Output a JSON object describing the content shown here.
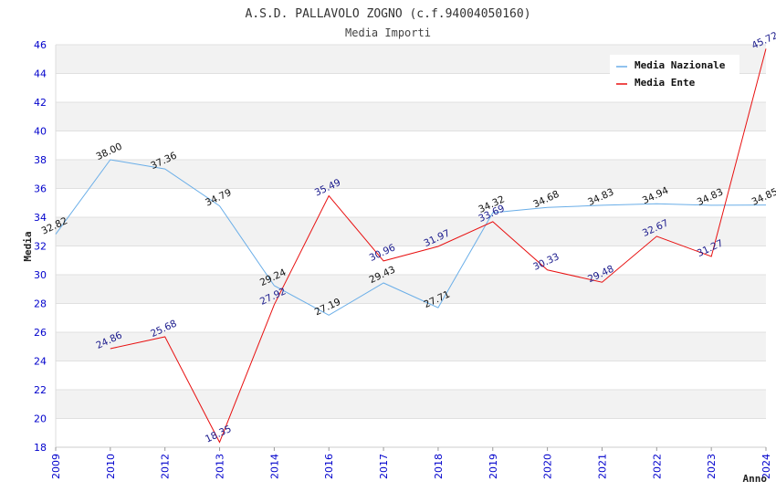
{
  "chart_data": {
    "type": "line",
    "title": "A.S.D. PALLAVOLO ZOGNO (c.f.94004050160)",
    "subtitle": "Media Importi",
    "xlabel": "Anno",
    "ylabel": "Media",
    "ylim": [
      18,
      46
    ],
    "yticks": [
      "18",
      "20",
      "22",
      "24",
      "26",
      "28",
      "30",
      "32",
      "34",
      "36",
      "38",
      "40",
      "42",
      "44",
      "46"
    ],
    "categories": [
      "2009",
      "2010",
      "2012",
      "2013",
      "2014",
      "2016",
      "2017",
      "2018",
      "2019",
      "2020",
      "2021",
      "2022",
      "2023",
      "2024"
    ],
    "grid": true,
    "legend_position": "top-right",
    "series": [
      {
        "name": "Media Nazionale",
        "color": "#6aaee8",
        "values": [
          32.82,
          38.0,
          37.36,
          34.79,
          29.24,
          27.19,
          29.43,
          27.71,
          34.32,
          34.68,
          34.83,
          34.94,
          34.83,
          34.85
        ],
        "labels": [
          "32.82",
          "38.00",
          "37.36",
          "34.79",
          "29.24",
          "27.19",
          "29.43",
          "27.71",
          "34.32",
          "34.68",
          "34.83",
          "34.94",
          "34.83",
          "34.85"
        ]
      },
      {
        "name": "Media Ente",
        "color": "#e81010",
        "values": [
          null,
          24.86,
          25.68,
          18.35,
          27.92,
          35.49,
          30.96,
          31.97,
          33.69,
          30.33,
          29.48,
          32.67,
          31.27,
          45.72
        ],
        "labels": [
          null,
          "24.86",
          "25.68",
          "18.35",
          "27.92",
          "35.49",
          "30.96",
          "31.97",
          "33.69",
          "30.33",
          "29.48",
          "32.67",
          "31.27",
          "45.72"
        ]
      }
    ]
  }
}
